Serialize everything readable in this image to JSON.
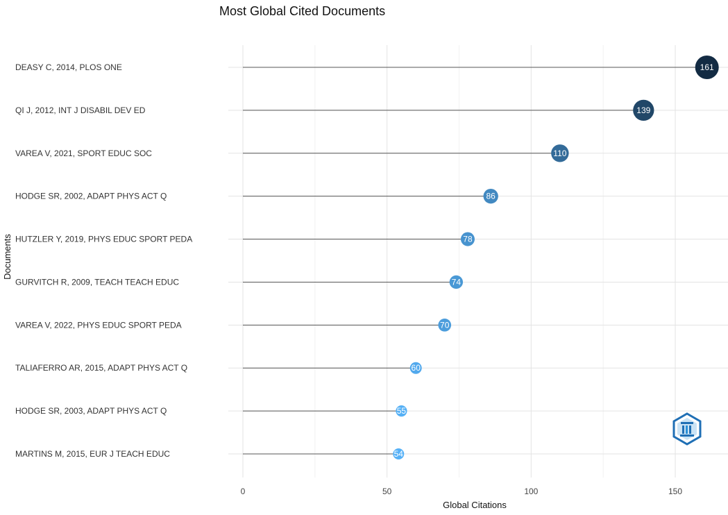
{
  "chart_data": {
    "type": "scatter",
    "title": "Most Global Cited Documents",
    "xlabel": "Global Citations",
    "ylabel": "Documents",
    "xlim": [
      0,
      165
    ],
    "xticks": [
      0,
      50,
      100,
      150
    ],
    "grid": true,
    "categories": [
      "DEASY C, 2014, PLOS ONE",
      "QI J, 2012, INT J DISABIL DEV ED",
      "VAREA V, 2021, SPORT EDUC SOC",
      "HODGE SR, 2002, ADAPT PHYS ACT Q",
      "HUTZLER Y, 2019, PHYS EDUC SPORT PEDA",
      "GURVITCH R, 2009, TEACH TEACH EDUC",
      "VAREA V, 2022, PHYS EDUC SPORT PEDA",
      "TALIAFERRO AR, 2015, ADAPT PHYS ACT Q",
      "HODGE SR, 2003, ADAPT PHYS ACT Q",
      "MARTINS M, 2015, EUR J TEACH EDUC"
    ],
    "values": [
      161,
      139,
      110,
      86,
      78,
      74,
      70,
      60,
      55,
      54
    ],
    "point_labels": [
      "161",
      "139",
      "110",
      "86",
      "78",
      "74",
      "70",
      "60",
      "55",
      "54"
    ],
    "color_scale": {
      "low": "#56B1F7",
      "high": "#132B43"
    }
  }
}
